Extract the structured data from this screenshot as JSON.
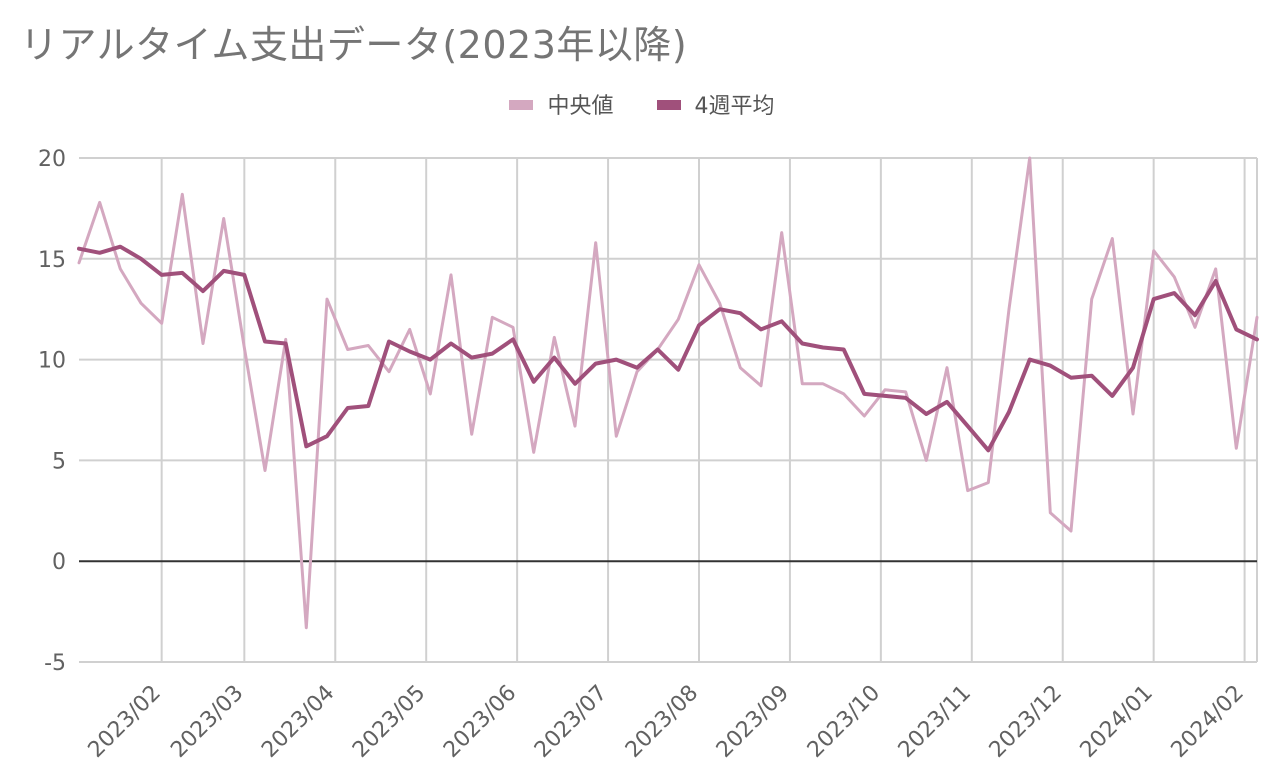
{
  "chart_data": {
    "type": "line",
    "title": "リアルタイム支出データ(2023年以降)",
    "xlabel": "",
    "ylabel": "",
    "ylim": [
      -5,
      20
    ],
    "yticks": [
      -5,
      0,
      5,
      10,
      15,
      20
    ],
    "grid": true,
    "legend_position": "top",
    "x_ticks": [
      {
        "label": "2023/02",
        "pos": 4
      },
      {
        "label": "2023/03",
        "pos": 8
      },
      {
        "label": "2023/04",
        "pos": 12.4
      },
      {
        "label": "2023/05",
        "pos": 16.8
      },
      {
        "label": "2023/06",
        "pos": 21.2
      },
      {
        "label": "2023/07",
        "pos": 25.6
      },
      {
        "label": "2023/08",
        "pos": 30
      },
      {
        "label": "2023/09",
        "pos": 34.4
      },
      {
        "label": "2023/10",
        "pos": 38.8
      },
      {
        "label": "2023/11",
        "pos": 43.2
      },
      {
        "label": "2023/12",
        "pos": 47.6
      },
      {
        "label": "2024/01",
        "pos": 52
      },
      {
        "label": "2024/02",
        "pos": 56.4
      }
    ],
    "x": [
      0,
      1,
      2,
      3,
      4,
      5,
      6,
      7,
      8,
      9,
      10,
      11,
      12,
      13,
      14,
      15,
      16,
      17,
      18,
      19,
      20,
      21,
      22,
      23,
      24,
      25,
      26,
      27,
      28,
      29,
      30,
      31,
      32,
      33,
      34,
      35,
      36,
      37,
      38,
      39,
      40,
      41,
      42,
      43,
      44,
      45,
      46,
      47,
      48,
      49,
      50,
      51,
      52,
      53,
      54,
      55,
      56,
      57
    ],
    "series": [
      {
        "name": "中央値",
        "color": "#d4a8c0",
        "width": 3,
        "values": [
          14.8,
          17.8,
          14.5,
          12.8,
          11.8,
          18.2,
          10.8,
          17.0,
          10.6,
          4.5,
          11.0,
          -3.3,
          13.0,
          10.5,
          10.7,
          9.4,
          11.5,
          8.3,
          14.2,
          6.3,
          12.1,
          11.6,
          5.4,
          11.1,
          6.7,
          15.8,
          6.2,
          9.4,
          10.5,
          12.0,
          14.7,
          12.8,
          9.6,
          8.7,
          16.3,
          8.8,
          8.8,
          8.3,
          7.2,
          8.5,
          8.4,
          5.0,
          9.6,
          3.5,
          3.9,
          12.5,
          20.0,
          2.4,
          1.5,
          13.0,
          16.0,
          7.3,
          15.4,
          14.1,
          11.6,
          14.5,
          5.6,
          12.1
        ]
      },
      {
        "name": "4週平均",
        "color": "#a0507b",
        "width": 4,
        "values": [
          15.5,
          15.3,
          15.6,
          15.0,
          14.2,
          14.3,
          13.4,
          14.4,
          14.2,
          10.9,
          10.8,
          5.7,
          6.2,
          7.6,
          7.7,
          10.9,
          10.4,
          10.0,
          10.8,
          10.1,
          10.3,
          11.0,
          8.9,
          10.1,
          8.8,
          9.8,
          10.0,
          9.6,
          10.5,
          9.5,
          11.7,
          12.5,
          12.3,
          11.5,
          11.9,
          10.8,
          10.6,
          10.5,
          8.3,
          8.2,
          8.1,
          7.3,
          7.9,
          6.7,
          5.5,
          7.4,
          10.0,
          9.7,
          9.1,
          9.2,
          8.2,
          9.6,
          13.0,
          13.3,
          12.2,
          13.9,
          11.5,
          11.0
        ]
      }
    ]
  }
}
